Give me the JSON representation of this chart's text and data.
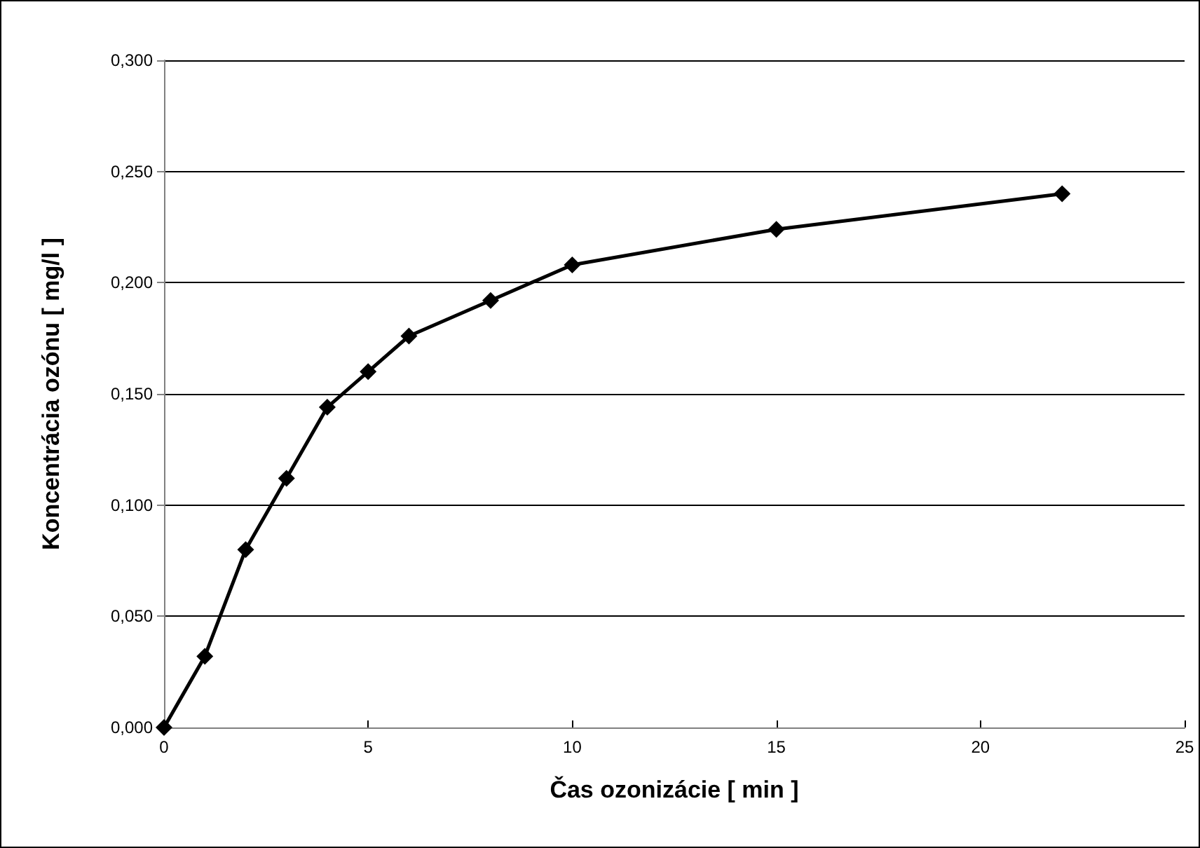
{
  "chart_data": {
    "type": "line",
    "xlabel": "Čas ozonizácie [ min ]",
    "ylabel": "Koncentrácia ozónu [ mg/l ]",
    "x": [
      0,
      1,
      2,
      3,
      4,
      5,
      6,
      8,
      10,
      15,
      22
    ],
    "series": [
      {
        "color": "#000000",
        "values": [
          0,
          0.032,
          0.08,
          0.112,
          0.144,
          0.16,
          0.176,
          0.192,
          0.208,
          0.224,
          0.24
        ]
      }
    ],
    "xlim": [
      0,
      25
    ],
    "xticks": [
      0,
      5,
      10,
      15,
      20,
      25
    ],
    "ylim": [
      0,
      0.3
    ],
    "yticks": [
      {
        "value": 0,
        "label": "0,000"
      },
      {
        "value": 0.05,
        "label": "0,050"
      },
      {
        "value": 0.1,
        "label": "0,100"
      },
      {
        "value": 0.15,
        "label": "0,150"
      },
      {
        "value": 0.2,
        "label": "0,200"
      },
      {
        "value": 0.25,
        "label": "0,250"
      },
      {
        "value": 0.3,
        "label": "0,300"
      }
    ],
    "grid": "y",
    "marker": "diamond",
    "line_style": "solid"
  }
}
